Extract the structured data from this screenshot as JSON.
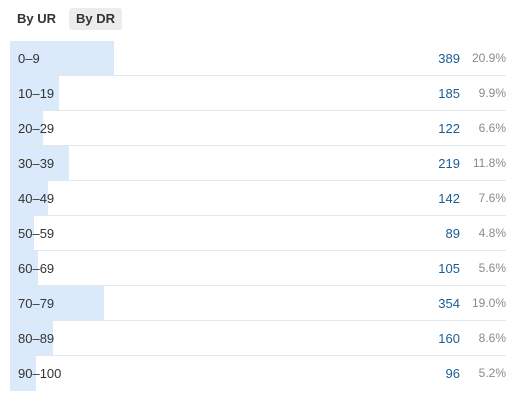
{
  "tabs": [
    {
      "label": "By UR",
      "active": false
    },
    {
      "label": "By DR",
      "active": true
    }
  ],
  "colors": {
    "bar": "#dbeafb",
    "count_text": "#1a5c96",
    "percent_text": "#8a8a8a",
    "divider": "#e4e7ea"
  },
  "rows": [
    {
      "range": "0–9",
      "count": "389",
      "percent": "20.9%",
      "share": 0.209
    },
    {
      "range": "10–19",
      "count": "185",
      "percent": "9.9%",
      "share": 0.099
    },
    {
      "range": "20–29",
      "count": "122",
      "percent": "6.6%",
      "share": 0.066
    },
    {
      "range": "30–39",
      "count": "219",
      "percent": "11.8%",
      "share": 0.118
    },
    {
      "range": "40–49",
      "count": "142",
      "percent": "7.6%",
      "share": 0.076
    },
    {
      "range": "50–59",
      "count": "89",
      "percent": "4.8%",
      "share": 0.048
    },
    {
      "range": "60–69",
      "count": "105",
      "percent": "5.6%",
      "share": 0.056
    },
    {
      "range": "70–79",
      "count": "354",
      "percent": "19.0%",
      "share": 0.19
    },
    {
      "range": "80–89",
      "count": "160",
      "percent": "8.6%",
      "share": 0.086
    },
    {
      "range": "90–100",
      "count": "96",
      "percent": "5.2%",
      "share": 0.052
    }
  ]
}
